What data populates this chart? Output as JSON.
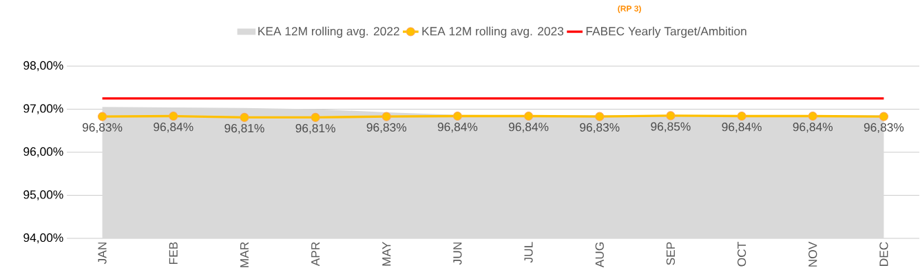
{
  "chart_data": {
    "type": "line",
    "annotations": [
      "(RP 3)"
    ],
    "categories": [
      "JAN",
      "FEB",
      "MAR",
      "APR",
      "MAY",
      "JUN",
      "JUL",
      "AUG",
      "SEP",
      "OCT",
      "NOV",
      "DEC"
    ],
    "series": [
      {
        "name": "KEA 12M rolling avg. 2022",
        "type": "area",
        "color": "#d9d9d9",
        "values": [
          97.05,
          97.04,
          97.03,
          97.0,
          96.93,
          96.87,
          96.86,
          96.86,
          96.86,
          96.86,
          96.86,
          96.86
        ]
      },
      {
        "name": "KEA 12M rolling avg. 2023",
        "color": "#ffc000",
        "marker": "circle",
        "values": [
          96.83,
          96.84,
          96.81,
          96.81,
          96.83,
          96.84,
          96.84,
          96.83,
          96.85,
          96.84,
          96.84,
          96.83
        ],
        "value_labels": [
          "96,83%",
          "96,84%",
          "96,81%",
          "96,81%",
          "96,83%",
          "96,84%",
          "96,84%",
          "96,83%",
          "96,85%",
          "96,84%",
          "96,84%",
          "96,83%"
        ]
      },
      {
        "name": "FABEC Yearly Target/Ambition",
        "color": "#ff0000",
        "values": [
          97.25,
          97.25,
          97.25,
          97.25,
          97.25,
          97.25,
          97.25,
          97.25,
          97.25,
          97.25,
          97.25,
          97.25
        ]
      }
    ],
    "ylim": [
      94,
      98
    ],
    "yticks": [
      {
        "value": 94,
        "label": "94,00%"
      },
      {
        "value": 95,
        "label": "95,00%"
      },
      {
        "value": 96,
        "label": "96,00%"
      },
      {
        "value": 97,
        "label": "97,00%"
      },
      {
        "value": 98,
        "label": "98,00%"
      }
    ],
    "grid": "y",
    "legend": "top"
  }
}
